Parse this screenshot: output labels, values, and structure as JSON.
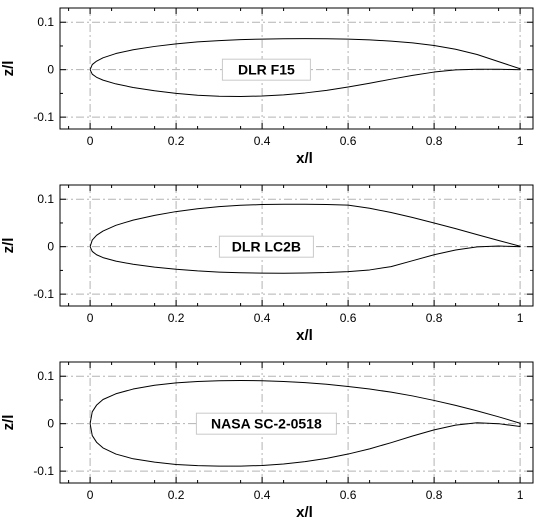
{
  "chart_data": [
    {
      "type": "line",
      "title": "",
      "xlabel": "x/l",
      "ylabel": "z/l",
      "xlim": [
        -0.07,
        1.03
      ],
      "ylim": [
        -0.125,
        0.13
      ],
      "xticks": [
        0,
        0.2,
        0.4,
        0.6,
        0.8,
        1
      ],
      "yticks": [
        -0.1,
        0,
        0.1
      ],
      "xtick_labels": [
        "0",
        "0.2",
        "0.4",
        "0.6",
        "0.8",
        "1"
      ],
      "ytick_labels": [
        "-0.1",
        "0",
        "0.1"
      ],
      "grid": true,
      "grid_style": "dash-dot",
      "annotation": "DLR F15",
      "series": [
        {
          "part": "upper",
          "x": [
            0,
            0.005,
            0.015,
            0.03,
            0.06,
            0.1,
            0.15,
            0.2,
            0.25,
            0.3,
            0.35,
            0.4,
            0.45,
            0.5,
            0.55,
            0.6,
            0.65,
            0.7,
            0.75,
            0.8,
            0.85,
            0.9,
            0.95,
            1.0
          ],
          "y": [
            0,
            0.0108,
            0.018,
            0.025,
            0.034,
            0.042,
            0.049,
            0.0545,
            0.0585,
            0.0613,
            0.0633,
            0.0645,
            0.0652,
            0.0655,
            0.0652,
            0.0644,
            0.0628,
            0.0603,
            0.0565,
            0.051,
            0.043,
            0.032,
            0.017,
            0.002
          ]
        },
        {
          "part": "lower",
          "x": [
            0,
            0.005,
            0.015,
            0.03,
            0.06,
            0.1,
            0.15,
            0.2,
            0.25,
            0.3,
            0.35,
            0.4,
            0.45,
            0.5,
            0.55,
            0.6,
            0.65,
            0.7,
            0.75,
            0.8,
            0.85,
            0.9,
            0.95,
            1.0
          ],
          "y": [
            0,
            -0.0095,
            -0.016,
            -0.022,
            -0.03,
            -0.0375,
            -0.0445,
            -0.05,
            -0.054,
            -0.056,
            -0.0565,
            -0.0555,
            -0.053,
            -0.049,
            -0.0435,
            -0.0365,
            -0.0285,
            -0.02,
            -0.012,
            -0.005,
            -0.0005,
            0.001,
            0.001,
            0.0
          ]
        }
      ]
    },
    {
      "type": "line",
      "title": "",
      "xlabel": "x/l",
      "ylabel": "z/l",
      "xlim": [
        -0.07,
        1.03
      ],
      "ylim": [
        -0.125,
        0.13
      ],
      "xticks": [
        0,
        0.2,
        0.4,
        0.6,
        0.8,
        1
      ],
      "yticks": [
        -0.1,
        0,
        0.1
      ],
      "xtick_labels": [
        "0",
        "0.2",
        "0.4",
        "0.6",
        "0.8",
        "1"
      ],
      "ytick_labels": [
        "-0.1",
        "0",
        "0.1"
      ],
      "grid": true,
      "grid_style": "dash-dot",
      "annotation": "DLR LC2B",
      "series": [
        {
          "part": "upper",
          "x": [
            0,
            0.005,
            0.015,
            0.03,
            0.06,
            0.1,
            0.15,
            0.2,
            0.25,
            0.3,
            0.35,
            0.4,
            0.45,
            0.5,
            0.55,
            0.6,
            0.65,
            0.7,
            0.75,
            0.8,
            0.85,
            0.9,
            0.95,
            1.0
          ],
          "y": [
            0,
            0.014,
            0.024,
            0.033,
            0.045,
            0.056,
            0.066,
            0.074,
            0.08,
            0.0845,
            0.0872,
            0.0888,
            0.0895,
            0.0895,
            0.0888,
            0.0875,
            0.081,
            0.072,
            0.0615,
            0.05,
            0.038,
            0.0255,
            0.013,
            0.001
          ]
        },
        {
          "part": "lower",
          "x": [
            0,
            0.005,
            0.015,
            0.03,
            0.06,
            0.1,
            0.15,
            0.2,
            0.25,
            0.3,
            0.35,
            0.4,
            0.45,
            0.5,
            0.55,
            0.6,
            0.65,
            0.7,
            0.75,
            0.8,
            0.85,
            0.9,
            0.95,
            1.0
          ],
          "y": [
            0,
            -0.01,
            -0.017,
            -0.023,
            -0.0305,
            -0.037,
            -0.043,
            -0.0475,
            -0.051,
            -0.0535,
            -0.055,
            -0.0558,
            -0.056,
            -0.0555,
            -0.0545,
            -0.0525,
            -0.049,
            -0.042,
            -0.0295,
            -0.017,
            -0.007,
            -0.0005,
            0.0015,
            0.0
          ]
        }
      ]
    },
    {
      "type": "line",
      "title": "",
      "xlabel": "x/l",
      "ylabel": "z/l",
      "xlim": [
        -0.07,
        1.03
      ],
      "ylim": [
        -0.125,
        0.13
      ],
      "xticks": [
        0,
        0.2,
        0.4,
        0.6,
        0.8,
        1
      ],
      "yticks": [
        -0.1,
        0,
        0.1
      ],
      "xtick_labels": [
        "0",
        "0.2",
        "0.4",
        "0.6",
        "0.8",
        "1"
      ],
      "ytick_labels": [
        "-0.1",
        "0",
        "0.1"
      ],
      "grid": true,
      "grid_style": "dash-dot",
      "annotation": "NASA SC-2-0518",
      "series": [
        {
          "part": "upper",
          "x": [
            0,
            0.005,
            0.015,
            0.03,
            0.06,
            0.1,
            0.15,
            0.2,
            0.25,
            0.3,
            0.35,
            0.4,
            0.45,
            0.5,
            0.55,
            0.6,
            0.65,
            0.7,
            0.75,
            0.8,
            0.85,
            0.9,
            0.95,
            1.0
          ],
          "y": [
            0,
            0.025,
            0.039,
            0.051,
            0.063,
            0.073,
            0.081,
            0.086,
            0.089,
            0.0905,
            0.091,
            0.0905,
            0.089,
            0.0865,
            0.083,
            0.0785,
            0.073,
            0.0665,
            0.0585,
            0.049,
            0.0385,
            0.027,
            0.0145,
            0.001
          ]
        },
        {
          "part": "lower",
          "x": [
            0,
            0.005,
            0.015,
            0.03,
            0.06,
            0.1,
            0.15,
            0.2,
            0.25,
            0.3,
            0.35,
            0.4,
            0.45,
            0.5,
            0.55,
            0.6,
            0.65,
            0.7,
            0.75,
            0.8,
            0.85,
            0.9,
            0.95,
            1.0
          ],
          "y": [
            0,
            -0.025,
            -0.039,
            -0.051,
            -0.064,
            -0.074,
            -0.081,
            -0.086,
            -0.0885,
            -0.0895,
            -0.0895,
            -0.088,
            -0.085,
            -0.08,
            -0.073,
            -0.064,
            -0.053,
            -0.04,
            -0.026,
            -0.013,
            -0.003,
            0.002,
            0.0,
            -0.006
          ]
        }
      ]
    }
  ]
}
